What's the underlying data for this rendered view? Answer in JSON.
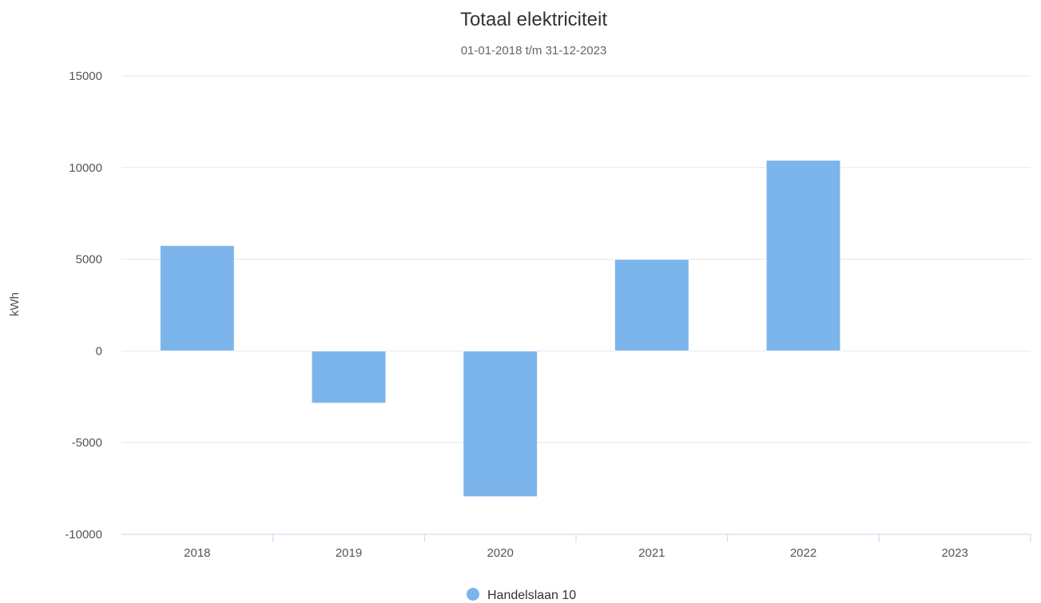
{
  "chart_data": {
    "type": "bar",
    "title": "Totaal elektriciteit",
    "subtitle": "01-01-2018 t/m 31-12-2023",
    "xlabel": "",
    "ylabel": "kWh",
    "categories": [
      "2018",
      "2019",
      "2020",
      "2021",
      "2022",
      "2023"
    ],
    "series": [
      {
        "name": "Handelslaan 10",
        "values": [
          5750,
          -2850,
          -7950,
          5000,
          10400,
          0
        ],
        "color": "#7cb5ec"
      }
    ],
    "ylim": [
      -10000,
      15000
    ],
    "yticks": [
      "15000",
      "10000",
      "5000",
      "0",
      "-5000",
      "-10000"
    ],
    "grid": true,
    "legend_position": "bottom-center"
  }
}
